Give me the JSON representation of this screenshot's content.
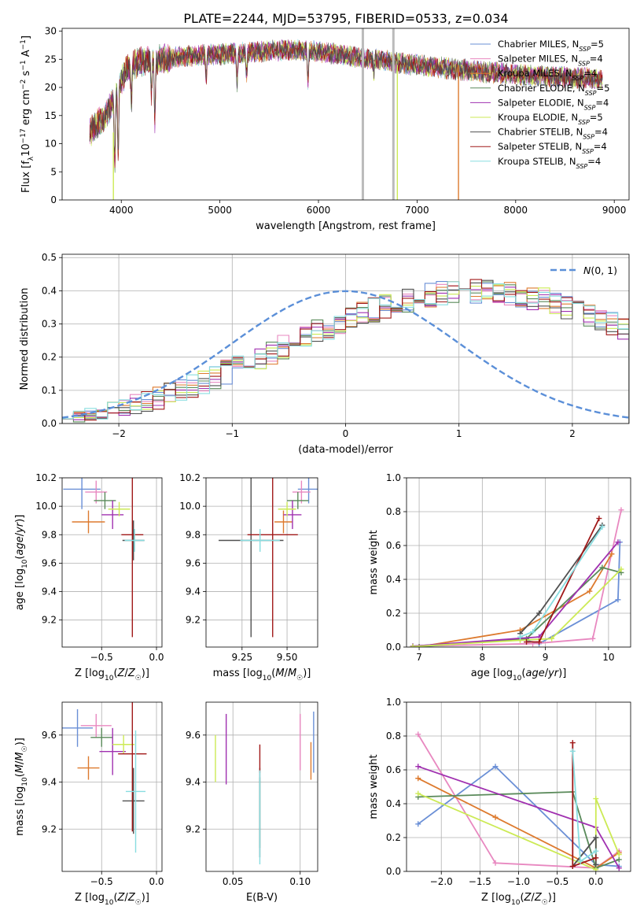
{
  "title": "PLATE=2244, MJD=53795, FIBERID=0533, z=0.034",
  "models": [
    {
      "label": "Chabrier MILES, N_SSP=5",
      "imf": "Chabrier MILES",
      "n": 5,
      "color": "#6a8fd6"
    },
    {
      "label": "Salpeter MILES, N_SSP=4",
      "imf": "Salpeter MILES",
      "n": 4,
      "color": "#e888c0"
    },
    {
      "label": "Kroupa MILES, N_SSP=4",
      "imf": "Kroupa MILES",
      "n": 4,
      "color": "#dd7a2e"
    },
    {
      "label": "Chabrier ELODIE, N_SSP=5",
      "imf": "Chabrier ELODIE",
      "n": 5,
      "color": "#5a8a5a"
    },
    {
      "label": "Salpeter ELODIE, N_SSP=4",
      "imf": "Salpeter ELODIE",
      "n": 4,
      "color": "#a030b0"
    },
    {
      "label": "Kroupa ELODIE, N_SSP=5",
      "imf": "Kroupa ELODIE",
      "n": 5,
      "color": "#ccea55"
    },
    {
      "label": "Chabrier STELIB, N_SSP=4",
      "imf": "Chabrier STELIB",
      "n": 4,
      "color": "#505050"
    },
    {
      "label": "Salpeter STELIB, N_SSP=4",
      "imf": "Salpeter STELIB",
      "n": 4,
      "color": "#a01818"
    },
    {
      "label": "Kroupa STELIB, N_SSP=4",
      "imf": "Kroupa STELIB",
      "n": 4,
      "color": "#88dde0"
    }
  ],
  "chart_data": [
    {
      "id": "spectrum",
      "type": "line",
      "xlabel": "wavelength [Angstrom, rest frame]",
      "ylabel_parts": [
        "Flux [f",
        "λ",
        "10",
        "−17",
        " erg cm",
        "−2",
        " s",
        "−1",
        " A",
        "−1",
        "]"
      ],
      "xlim": [
        3400,
        9150
      ],
      "ylim": [
        0,
        30.5
      ],
      "xticks": [
        4000,
        5000,
        6000,
        7000,
        8000,
        9000
      ],
      "yticks": [
        0,
        5,
        10,
        15,
        20,
        25,
        30
      ],
      "grid": false,
      "legend": "upper right",
      "continuum": {
        "x": [
          3680,
          3760,
          3840,
          3900,
          3950,
          4000,
          4050,
          4100,
          4150,
          4200,
          4300,
          4400,
          4500,
          4600,
          4700,
          4800,
          4900,
          5000,
          5100,
          5200,
          5300,
          5400,
          5500,
          5600,
          5700,
          5800,
          5900,
          6000,
          6100,
          6200,
          6300,
          6400,
          6500,
          6600,
          6700,
          6800,
          6900,
          7000,
          7100,
          7200,
          7300,
          7400,
          7500,
          7600,
          7700,
          7800,
          7900,
          8000,
          8100,
          8200,
          8300,
          8400,
          8500,
          8600,
          8700,
          8800,
          8900
        ],
        "y": [
          12.0,
          13.5,
          15.0,
          17.0,
          19.0,
          21.0,
          23.0,
          23.8,
          24.3,
          24.6,
          24.8,
          25.0,
          25.2,
          25.4,
          25.6,
          25.7,
          25.8,
          25.9,
          26.0,
          26.1,
          26.2,
          26.3,
          26.5,
          26.6,
          26.6,
          26.6,
          26.5,
          26.3,
          26.1,
          25.9,
          25.6,
          25.4,
          25.1,
          24.9,
          24.7,
          24.4,
          24.2,
          24.0,
          23.8,
          23.6,
          23.4,
          23.2,
          23.1,
          22.9,
          22.7,
          22.6,
          22.4,
          22.3,
          22.2,
          22.1,
          22.0,
          21.9,
          21.8,
          21.7,
          21.6,
          21.6,
          21.5
        ]
      },
      "absorption_features": [
        {
          "x": 3934,
          "y": 6.5
        },
        {
          "x": 3969,
          "y": 8.5
        },
        {
          "x": 4102,
          "y": 17.5
        },
        {
          "x": 4305,
          "y": 19.5
        },
        {
          "x": 4340,
          "y": 13.5
        },
        {
          "x": 4861,
          "y": 21.5
        },
        {
          "x": 5175,
          "y": 20.5
        },
        {
          "x": 5270,
          "y": 22.5
        },
        {
          "x": 5893,
          "y": 21.0
        },
        {
          "x": 6563,
          "y": 23.0
        }
      ],
      "artifacts": [
        {
          "x": 6450,
          "from": 0,
          "to": 30.5,
          "color": "#bbbbbb"
        },
        {
          "x": 6760,
          "from": 0,
          "to": 30.5,
          "color": "#bbbbbb"
        },
        {
          "x": 3920,
          "from": 0,
          "to": 12,
          "color": "#ccea55"
        },
        {
          "x": 6800,
          "from": 0,
          "to": 24,
          "color": "#ccea55"
        },
        {
          "x": 7420,
          "from": 0,
          "to": 24,
          "color": "#dd7a2e"
        }
      ],
      "series_extent": {
        "start": 3680,
        "end": 8880
      }
    },
    {
      "id": "residuals",
      "type": "histogram",
      "xlabel": "(data-model)/error",
      "ylabel": "Normed distribution",
      "xlim": [
        -2.5,
        2.5
      ],
      "ylim": [
        0,
        0.51
      ],
      "xticks": [
        -2,
        -1,
        0,
        1,
        2
      ],
      "yticks": [
        0.0,
        0.1,
        0.2,
        0.3,
        0.4,
        0.5
      ],
      "grid": true,
      "legend": "upper right",
      "reference_label": "N(0,1)",
      "reference_mean": 0,
      "reference_sigma": 1,
      "reference_color": "#5b8fd8",
      "bin_width": 0.1,
      "bin_start": -2.5,
      "envelope": [
        0.018,
        0.022,
        0.027,
        0.034,
        0.041,
        0.049,
        0.058,
        0.068,
        0.078,
        0.089,
        0.101,
        0.114,
        0.127,
        0.141,
        0.155,
        0.17,
        0.185,
        0.2,
        0.216,
        0.231,
        0.247,
        0.262,
        0.276,
        0.291,
        0.305,
        0.318,
        0.331,
        0.343,
        0.354,
        0.364,
        0.373,
        0.381,
        0.388,
        0.393,
        0.397,
        0.399,
        0.4,
        0.399,
        0.396,
        0.392,
        0.386,
        0.379,
        0.371,
        0.362,
        0.352,
        0.34,
        0.328,
        0.316,
        0.302,
        0.288
      ]
    },
    {
      "id": "age-vs-z",
      "type": "scatter",
      "xlabel": "Z [log10(Z/Z☉)]",
      "ylabel": "age  [log10(age/yr)]",
      "xlim": [
        -0.86,
        0.05
      ],
      "ylim": [
        9.01,
        10.2
      ],
      "xticks": [
        -0.5,
        0.0
      ],
      "yticks": [
        9.2,
        9.4,
        9.6,
        9.8,
        10.0,
        10.2
      ],
      "grid": true,
      "points": [
        {
          "x": -0.68,
          "y": 10.12,
          "xerr": 0.17,
          "yerr": 0.14,
          "model": 0
        },
        {
          "x": -0.55,
          "y": 10.1,
          "xerr": 0.1,
          "yerr": 0.08,
          "model": 1
        },
        {
          "x": -0.62,
          "y": 9.89,
          "xerr": 0.15,
          "yerr": 0.08,
          "model": 2
        },
        {
          "x": -0.47,
          "y": 10.04,
          "xerr": 0.1,
          "yerr": 0.06,
          "model": 3
        },
        {
          "x": -0.4,
          "y": 9.94,
          "xerr": 0.1,
          "yerr": 0.1,
          "model": 4
        },
        {
          "x": -0.34,
          "y": 9.98,
          "xerr": 0.1,
          "yerr": 0.05,
          "model": 5
        },
        {
          "x": -0.21,
          "y": 9.76,
          "xerr": 0.1,
          "yerr": 0.14,
          "model": 6
        },
        {
          "x": -0.22,
          "y": 9.8,
          "xerr": 0.1,
          "yerr": 0.72,
          "model": 7
        },
        {
          "x": -0.2,
          "y": 9.76,
          "xerr": 0.09,
          "yerr": 0.08,
          "model": 8
        }
      ]
    },
    {
      "id": "age-vs-mass",
      "type": "scatter",
      "xlabel": "mass [log10(M/M☉)]",
      "ylabel": "",
      "xlim": [
        9.05,
        9.67
      ],
      "ylim": [
        9.01,
        10.2
      ],
      "xticks": [
        9.25,
        9.5
      ],
      "yticks": [
        9.2,
        9.4,
        9.6,
        9.8,
        10.0,
        10.2
      ],
      "grid": true,
      "points": [
        {
          "x": 9.62,
          "y": 10.12,
          "xerr": 0.06,
          "yerr": 0.1,
          "model": 0
        },
        {
          "x": 9.58,
          "y": 10.1,
          "xerr": 0.05,
          "yerr": 0.08,
          "model": 1
        },
        {
          "x": 9.48,
          "y": 9.89,
          "xerr": 0.05,
          "yerr": 0.08,
          "model": 2
        },
        {
          "x": 9.56,
          "y": 10.04,
          "xerr": 0.06,
          "yerr": 0.06,
          "model": 3
        },
        {
          "x": 9.53,
          "y": 9.94,
          "xerr": 0.05,
          "yerr": 0.1,
          "model": 4
        },
        {
          "x": 9.5,
          "y": 9.98,
          "xerr": 0.05,
          "yerr": 0.05,
          "model": 5
        },
        {
          "x": 9.3,
          "y": 9.76,
          "xerr": 0.18,
          "yerr": 0.68,
          "model": 6
        },
        {
          "x": 9.42,
          "y": 9.8,
          "xerr": 0.14,
          "yerr": 0.72,
          "model": 7
        },
        {
          "x": 9.35,
          "y": 9.76,
          "xerr": 0.11,
          "yerr": 0.08,
          "model": 8
        }
      ]
    },
    {
      "id": "mass-weight-vs-age",
      "type": "line",
      "xlabel": "age  [log10(age/yr)]",
      "ylabel": "mass weight",
      "xlim": [
        6.8,
        10.35
      ],
      "ylim": [
        0,
        1
      ],
      "xticks": [
        7,
        8,
        9,
        10
      ],
      "yticks": [
        0.0,
        0.2,
        0.4,
        0.6,
        0.8,
        1.0
      ],
      "grid": true,
      "series": [
        {
          "model": 0,
          "x": [
            6.9,
            8.6,
            8.9,
            10.15,
            10.18
          ],
          "y": [
            0.005,
            0.05,
            0.02,
            0.28,
            0.62
          ]
        },
        {
          "model": 1,
          "x": [
            6.9,
            8.8,
            9.75,
            10.2
          ],
          "y": [
            0.005,
            0.02,
            0.05,
            0.81
          ]
        },
        {
          "model": 2,
          "x": [
            7.0,
            8.6,
            9.7,
            10.05
          ],
          "y": [
            0.002,
            0.1,
            0.33,
            0.55
          ]
        },
        {
          "model": 3,
          "x": [
            7.0,
            8.7,
            9.9,
            10.2
          ],
          "y": [
            0.002,
            0.05,
            0.47,
            0.44
          ]
        },
        {
          "model": 4,
          "x": [
            6.9,
            8.9,
            10.15
          ],
          "y": [
            0.005,
            0.06,
            0.62
          ]
        },
        {
          "model": 5,
          "x": [
            6.9,
            8.6,
            9.1,
            10.2
          ],
          "y": [
            0.003,
            0.04,
            0.05,
            0.46
          ]
        },
        {
          "model": 6,
          "x": [
            8.6,
            8.9,
            9.9
          ],
          "y": [
            0.08,
            0.2,
            0.72
          ]
        },
        {
          "model": 7,
          "x": [
            8.7,
            8.9,
            9.85
          ],
          "y": [
            0.03,
            0.03,
            0.76
          ]
        },
        {
          "model": 8,
          "x": [
            8.6,
            8.8,
            9.9
          ],
          "y": [
            0.06,
            0.09,
            0.71
          ]
        }
      ]
    },
    {
      "id": "mass-vs-z",
      "type": "scatter",
      "xlabel": "Z [log10(Z/Z☉)]",
      "ylabel": "mass [log10(M/M☉)]",
      "xlim": [
        -0.86,
        0.05
      ],
      "ylim": [
        9.02,
        9.74
      ],
      "xticks": [
        -0.5,
        0.0
      ],
      "yticks": [
        9.2,
        9.4,
        9.6
      ],
      "grid": true,
      "points": [
        {
          "x": -0.72,
          "y": 9.63,
          "xerr": 0.14,
          "yerr": 0.08,
          "model": 0
        },
        {
          "x": -0.55,
          "y": 9.64,
          "xerr": 0.14,
          "yerr": 0.05,
          "model": 1
        },
        {
          "x": -0.62,
          "y": 9.46,
          "xerr": 0.1,
          "yerr": 0.05,
          "model": 2
        },
        {
          "x": -0.5,
          "y": 9.59,
          "xerr": 0.1,
          "yerr": 0.04,
          "model": 3
        },
        {
          "x": -0.4,
          "y": 9.53,
          "xerr": 0.12,
          "yerr": 0.1,
          "model": 4
        },
        {
          "x": -0.3,
          "y": 9.56,
          "xerr": 0.1,
          "yerr": 0.04,
          "model": 5
        },
        {
          "x": -0.21,
          "y": 9.32,
          "xerr": 0.1,
          "yerr": 0.14,
          "model": 6
        },
        {
          "x": -0.22,
          "y": 9.52,
          "xerr": 0.13,
          "yerr": 0.33,
          "model": 7
        },
        {
          "x": -0.19,
          "y": 9.36,
          "xerr": 0.09,
          "yerr": 0.26,
          "model": 8
        }
      ]
    },
    {
      "id": "mass-vs-ebv",
      "type": "scatter",
      "xlabel": "E(B-V)",
      "ylabel": "",
      "xlim": [
        0.03,
        0.113
      ],
      "ylim": [
        9.02,
        9.74
      ],
      "xticks": [
        0.05,
        0.1
      ],
      "yticks": [
        9.2,
        9.4,
        9.6
      ],
      "grid": true,
      "points": [
        {
          "x": 0.11,
          "y": 9.57,
          "xerr": 0,
          "yerr": 0.13,
          "model": 0
        },
        {
          "x": 0.1,
          "y": 9.57,
          "xerr": 0,
          "yerr": 0.12,
          "model": 1
        },
        {
          "x": 0.108,
          "y": 9.49,
          "xerr": 0,
          "yerr": 0.08,
          "model": 2
        },
        {
          "x": 0.07,
          "y": 9.27,
          "xerr": 0,
          "yerr": 0.15,
          "model": 3
        },
        {
          "x": 0.045,
          "y": 9.54,
          "xerr": 0,
          "yerr": 0.15,
          "model": 4
        },
        {
          "x": 0.037,
          "y": 9.5,
          "xerr": 0,
          "yerr": 0.1,
          "model": 5
        },
        {
          "x": 0.07,
          "y": 9.27,
          "xerr": 0,
          "yerr": 0.19,
          "model": 6
        },
        {
          "x": 0.07,
          "y": 9.5,
          "xerr": 0,
          "yerr": 0.06,
          "model": 7
        },
        {
          "x": 0.07,
          "y": 9.25,
          "xerr": 0,
          "yerr": 0.2,
          "model": 8
        }
      ]
    },
    {
      "id": "mass-weight-vs-z",
      "type": "line",
      "xlabel": "Z [log10(Z/Z☉)]",
      "ylabel": "mass weight",
      "xlim": [
        -2.45,
        0.45
      ],
      "ylim": [
        0,
        1
      ],
      "xticks": [
        -2.0,
        -1.5,
        -1.0,
        -0.5,
        0.0
      ],
      "yticks": [
        0.0,
        0.2,
        0.4,
        0.6,
        0.8,
        1.0
      ],
      "grid": true,
      "series": [
        {
          "model": 0,
          "x": [
            -2.3,
            -1.3,
            0.0,
            0.3
          ],
          "y": [
            0.28,
            0.62,
            0.04,
            0.03
          ]
        },
        {
          "model": 1,
          "x": [
            -2.3,
            -1.3,
            0.0,
            0.3
          ],
          "y": [
            0.81,
            0.05,
            0.02,
            0.12
          ]
        },
        {
          "model": 2,
          "x": [
            -2.3,
            -1.3,
            0.0,
            0.3
          ],
          "y": [
            0.55,
            0.32,
            0.02,
            0.11
          ]
        },
        {
          "model": 3,
          "x": [
            -2.3,
            -0.3,
            0.0,
            0.3
          ],
          "y": [
            0.44,
            0.47,
            0.02,
            0.07
          ]
        },
        {
          "model": 4,
          "x": [
            -2.3,
            0.0,
            0.3
          ],
          "y": [
            0.62,
            0.26,
            0.02
          ]
        },
        {
          "model": 5,
          "x": [
            -2.3,
            0.0,
            0.0,
            0.3
          ],
          "y": [
            0.46,
            0.01,
            0.43,
            0.1
          ]
        },
        {
          "model": 6,
          "x": [
            -0.3,
            0.0,
            0.0
          ],
          "y": [
            0.03,
            0.2,
            0.04
          ]
        },
        {
          "model": 7,
          "x": [
            -0.3,
            -0.3,
            0.0
          ],
          "y": [
            0.76,
            0.03,
            0.08
          ]
        },
        {
          "model": 8,
          "x": [
            -0.3,
            -0.2,
            0.0
          ],
          "y": [
            0.71,
            0.06,
            0.12
          ]
        }
      ]
    }
  ]
}
